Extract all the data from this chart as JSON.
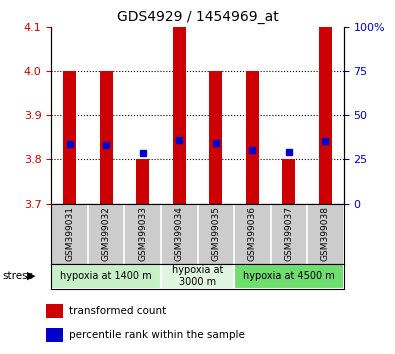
{
  "title": "GDS4929 / 1454969_at",
  "samples": [
    "GSM399031",
    "GSM399032",
    "GSM399033",
    "GSM399034",
    "GSM399035",
    "GSM399036",
    "GSM399037",
    "GSM399038"
  ],
  "red_bar_top": [
    4.0,
    4.0,
    3.8,
    4.1,
    4.0,
    4.0,
    3.8,
    4.1
  ],
  "blue_dot_y": [
    3.835,
    3.832,
    3.814,
    3.843,
    3.836,
    3.82,
    3.817,
    3.842
  ],
  "bar_base": 3.7,
  "ylim": [
    3.7,
    4.1
  ],
  "yticks_left": [
    3.7,
    3.8,
    3.9,
    4.0,
    4.1
  ],
  "yticks_right_labels": [
    "0",
    "25",
    "50",
    "75",
    "100%"
  ],
  "yticks_right_pos": [
    3.7,
    3.8,
    3.9,
    4.0,
    4.1
  ],
  "groups": [
    {
      "label": "hypoxia at 1400 m",
      "start": 0,
      "end": 3,
      "color": "#c8f0c8"
    },
    {
      "label": "hypoxia at\n3000 m",
      "start": 3,
      "end": 5,
      "color": "#e0f5e0"
    },
    {
      "label": "hypoxia at 4500 m",
      "start": 5,
      "end": 8,
      "color": "#70dd70"
    }
  ],
  "red_color": "#cc0000",
  "blue_color": "#0000cc",
  "bar_width": 0.35,
  "left_tick_color": "#cc0000",
  "right_tick_color": "#0000cc",
  "bg_color": "#ffffff",
  "sample_area_color": "#cccccc"
}
